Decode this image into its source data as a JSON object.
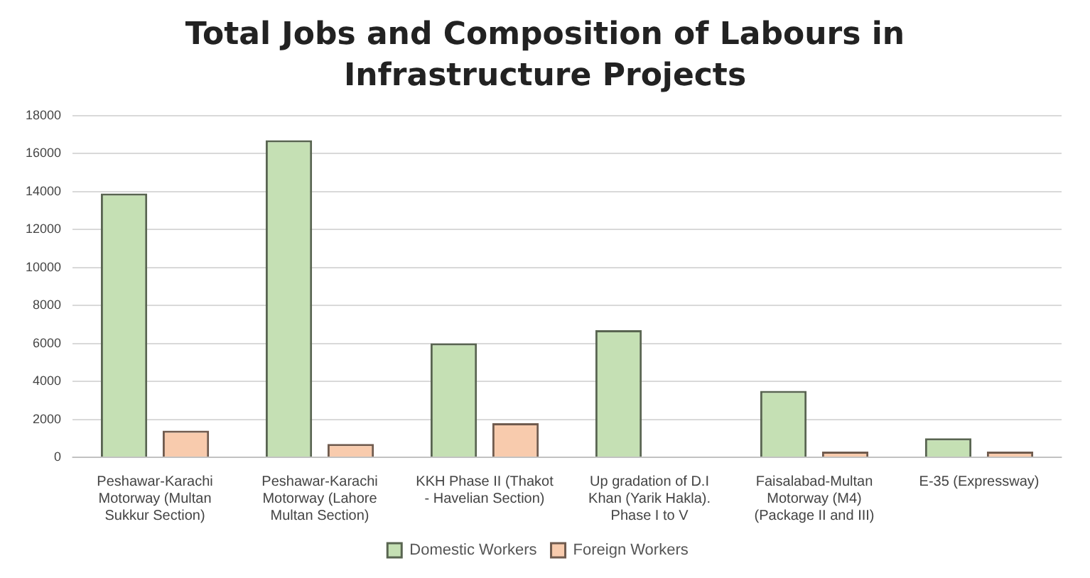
{
  "chart_data": {
    "type": "bar",
    "title": "Total Jobs and Composition of Labours in Infrastructure Projects",
    "categories": [
      "Peshawar-Karachi Motorway (Multan Sukkur Section)",
      "Peshawar-Karachi Motorway (Lahore Multan Section)",
      "KKH Phase II (Thakot - Havelian Section)",
      "Up gradation of D.I Khan (Yarik Hakla). Phase I to V",
      "Faisalabad-Multan Motorway (M4) (Package II and III)",
      "E-35 (Expressway)"
    ],
    "series": [
      {
        "name": "Domestic Workers",
        "color": "#c5e0b4",
        "values": [
          13900,
          16700,
          6000,
          6700,
          3500,
          1000
        ]
      },
      {
        "name": "Foreign Workers",
        "color": "#f8cbad",
        "values": [
          1400,
          700,
          1800,
          null,
          300,
          300
        ]
      }
    ],
    "ylim": [
      0,
      18000
    ],
    "yticks": [
      0,
      2000,
      4000,
      6000,
      8000,
      10000,
      12000,
      14000,
      16000,
      18000
    ],
    "grid": "y",
    "legend": "bottom"
  }
}
